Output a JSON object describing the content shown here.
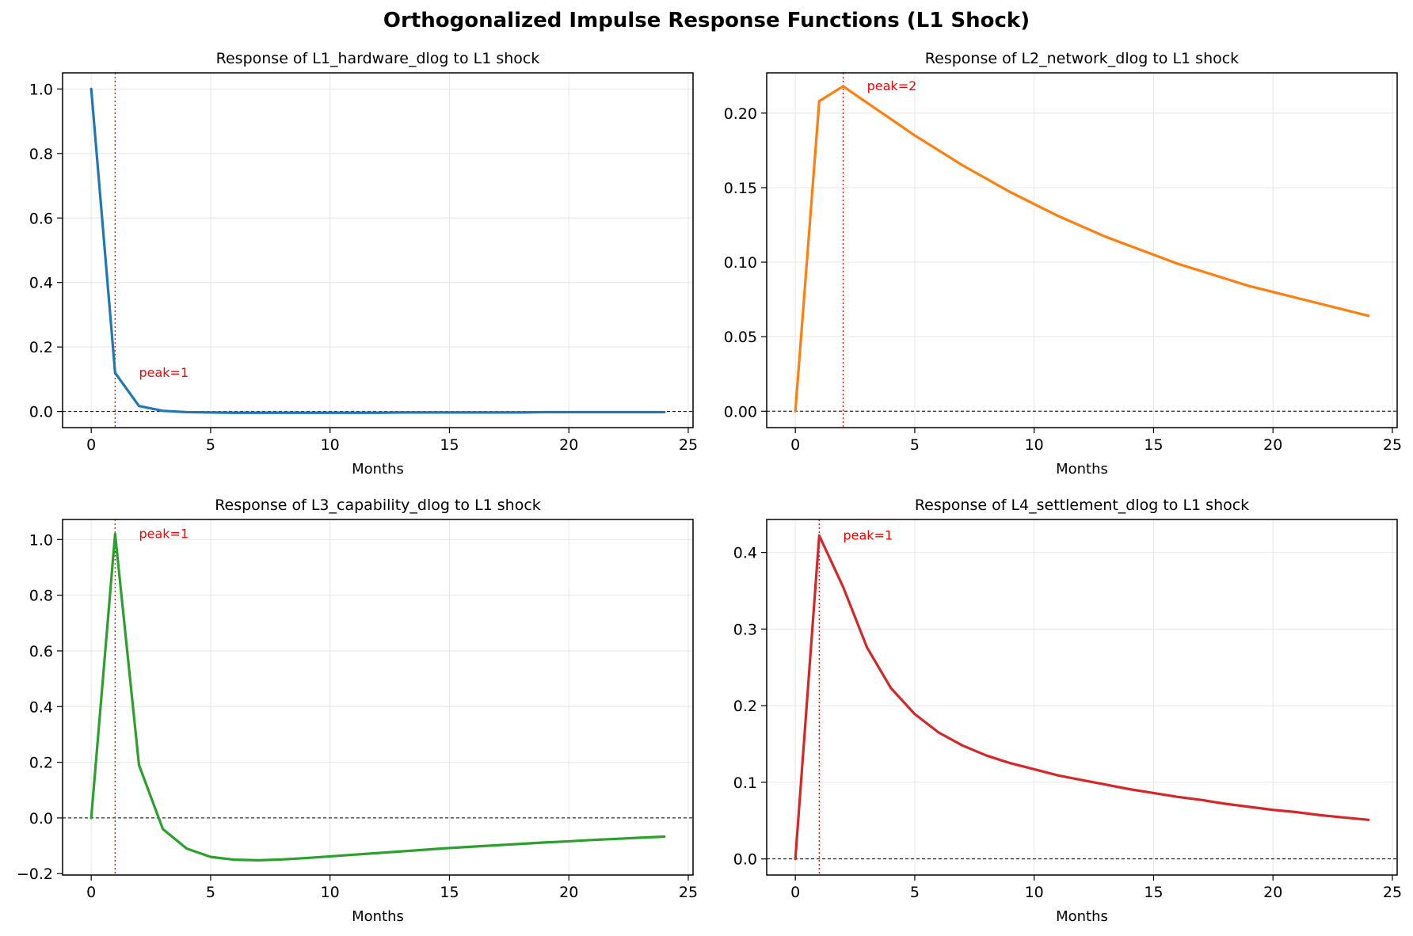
{
  "figure_title": "Orthogonalized Impulse Response Functions (L1 Shock)",
  "colors": {
    "grid": "#e6e6e6",
    "axis": "#000000",
    "peak": "#ff0000",
    "zero_line": "#000000"
  },
  "chart_data": [
    {
      "type": "line",
      "title": "Response of L1_hardware_dlog to L1 shock",
      "xlabel": "Months",
      "ylabel": "",
      "color": "#1f77b4",
      "xlim": [
        -1.2,
        25.2
      ],
      "ylim": [
        -0.05,
        1.05
      ],
      "xticks": [
        0,
        5,
        10,
        15,
        20,
        25
      ],
      "yticks": [
        0.0,
        0.2,
        0.4,
        0.6,
        0.8,
        1.0
      ],
      "ytick_labels": [
        "0.0",
        "0.2",
        "0.4",
        "0.6",
        "0.8",
        "1.0"
      ],
      "x": [
        0,
        1,
        2,
        3,
        4,
        5,
        6,
        7,
        8,
        9,
        10,
        11,
        12,
        13,
        14,
        15,
        16,
        17,
        18,
        19,
        20,
        21,
        22,
        23,
        24
      ],
      "values": [
        1.0,
        0.12,
        0.017,
        0.002,
        -0.002,
        -0.003,
        -0.004,
        -0.004,
        -0.004,
        -0.004,
        -0.004,
        -0.004,
        -0.004,
        -0.003,
        -0.003,
        -0.003,
        -0.003,
        -0.003,
        -0.003,
        -0.002,
        -0.002,
        -0.002,
        -0.002,
        -0.002,
        -0.002
      ],
      "peak_x": 1,
      "peak_label": "peak=1",
      "peak_label_y": 0.12
    },
    {
      "type": "line",
      "title": "Response of L2_network_dlog to L1 shock",
      "xlabel": "Months",
      "ylabel": "",
      "color": "#ff7f0e",
      "xlim": [
        -1.2,
        25.2
      ],
      "ylim": [
        -0.011,
        0.227
      ],
      "xticks": [
        0,
        5,
        10,
        15,
        20,
        25
      ],
      "yticks": [
        0.0,
        0.05,
        0.1,
        0.15,
        0.2
      ],
      "ytick_labels": [
        "0.00",
        "0.05",
        "0.10",
        "0.15",
        "0.20"
      ],
      "x": [
        0,
        1,
        2,
        3,
        4,
        5,
        6,
        7,
        8,
        9,
        10,
        11,
        12,
        13,
        14,
        15,
        16,
        17,
        18,
        19,
        20,
        21,
        22,
        23,
        24
      ],
      "values": [
        0.0,
        0.208,
        0.218,
        0.207,
        0.196,
        0.185,
        0.175,
        0.165,
        0.156,
        0.147,
        0.139,
        0.131,
        0.124,
        0.117,
        0.111,
        0.105,
        0.099,
        0.094,
        0.089,
        0.084,
        0.08,
        0.076,
        0.072,
        0.068,
        0.064
      ],
      "peak_x": 2,
      "peak_label": "peak=2",
      "peak_label_y": 0.218
    },
    {
      "type": "line",
      "title": "Response of L3_capability_dlog to L1 shock",
      "xlabel": "Months",
      "ylabel": "",
      "color": "#2ca02c",
      "xlim": [
        -1.2,
        25.2
      ],
      "ylim": [
        -0.205,
        1.072
      ],
      "xticks": [
        0,
        5,
        10,
        15,
        20,
        25
      ],
      "yticks": [
        -0.2,
        0.0,
        0.2,
        0.4,
        0.6,
        0.8,
        1.0
      ],
      "ytick_labels": [
        "−0.2",
        "0.0",
        "0.2",
        "0.4",
        "0.6",
        "0.8",
        "1.0"
      ],
      "x": [
        0,
        1,
        2,
        3,
        4,
        5,
        6,
        7,
        8,
        9,
        10,
        11,
        12,
        13,
        14,
        15,
        16,
        17,
        18,
        19,
        20,
        21,
        22,
        23,
        24
      ],
      "values": [
        0.0,
        1.02,
        0.19,
        -0.04,
        -0.11,
        -0.14,
        -0.15,
        -0.152,
        -0.149,
        -0.144,
        -0.138,
        -0.132,
        -0.126,
        -0.12,
        -0.114,
        -0.108,
        -0.103,
        -0.098,
        -0.093,
        -0.088,
        -0.084,
        -0.079,
        -0.075,
        -0.071,
        -0.067
      ],
      "peak_x": 1,
      "peak_label": "peak=1",
      "peak_label_y": 1.02
    },
    {
      "type": "line",
      "title": "Response of L4_settlement_dlog to L1 shock",
      "xlabel": "Months",
      "ylabel": "",
      "color": "#d62728",
      "xlim": [
        -1.2,
        25.2
      ],
      "ylim": [
        -0.021,
        0.443
      ],
      "xticks": [
        0,
        5,
        10,
        15,
        20,
        25
      ],
      "yticks": [
        0.0,
        0.1,
        0.2,
        0.3,
        0.4
      ],
      "ytick_labels": [
        "0.0",
        "0.1",
        "0.2",
        "0.3",
        "0.4"
      ],
      "x": [
        0,
        1,
        2,
        3,
        4,
        5,
        6,
        7,
        8,
        9,
        10,
        11,
        12,
        13,
        14,
        15,
        16,
        17,
        18,
        19,
        20,
        21,
        22,
        23,
        24
      ],
      "values": [
        0.0,
        0.422,
        0.355,
        0.276,
        0.223,
        0.189,
        0.165,
        0.148,
        0.135,
        0.125,
        0.117,
        0.109,
        0.103,
        0.097,
        0.091,
        0.086,
        0.081,
        0.077,
        0.072,
        0.068,
        0.064,
        0.061,
        0.057,
        0.054,
        0.051
      ],
      "peak_x": 1,
      "peak_label": "peak=1",
      "peak_label_y": 0.422
    }
  ]
}
